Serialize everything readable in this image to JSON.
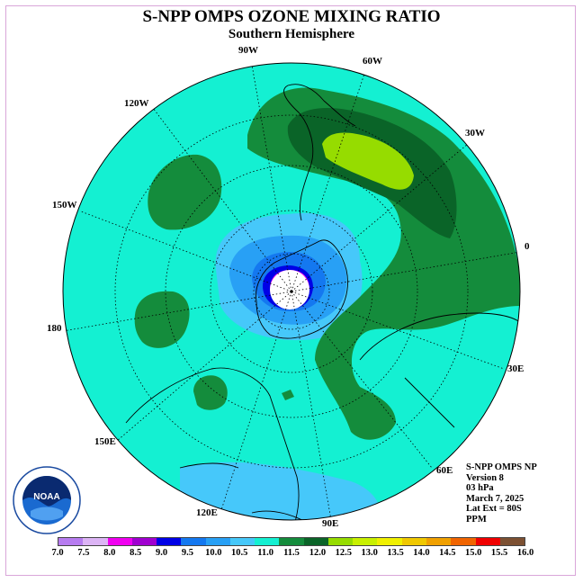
{
  "title": "S-NPP OMPS OZONE MIXING RATIO",
  "subtitle": "Southern Hemisphere",
  "lon_labels": {
    "lon_90w": "90W",
    "lon_60w": "60W",
    "lon_120w": "120W",
    "lon_30w": "30W",
    "lon_150w": "150W",
    "lon_0": "0",
    "lon_180": "180",
    "lon_30e": "30E",
    "lon_150e": "150E",
    "lon_60e": "60E",
    "lon_120e": "120E",
    "lon_90e": "90E"
  },
  "info": {
    "product": "S-NPP OMPS NP",
    "version": "Version 8",
    "level": "03 hPa",
    "date": "March 7, 2025",
    "lat_ext": "Lat Ext = 80S",
    "units": "PPM"
  },
  "logo_text": "NOAA",
  "colorbar": {
    "ticks": [
      "7.0",
      "7.5",
      "8.0",
      "8.5",
      "9.0",
      "9.5",
      "10.0",
      "10.5",
      "11.0",
      "11.5",
      "12.0",
      "12.5",
      "13.0",
      "13.5",
      "14.0",
      "14.5",
      "15.0",
      "15.5",
      "16.0"
    ],
    "colors": [
      "#b77cf0",
      "#dcb4f5",
      "#f000f0",
      "#a000d0",
      "#0000e6",
      "#1478f0",
      "#28a0f5",
      "#46c8fa",
      "#14f0d2",
      "#148c3c",
      "#0a6428",
      "#96dc00",
      "#c8f000",
      "#f0f000",
      "#f0c800",
      "#f0a000",
      "#f06400",
      "#f00000",
      "#7c5032"
    ]
  },
  "map": {
    "background_color": "#14f0d2",
    "regions": [
      "mid-latitude ozone maxima (11.5-12.5 ppm)",
      "polar minimum (< 9 ppm)"
    ]
  }
}
